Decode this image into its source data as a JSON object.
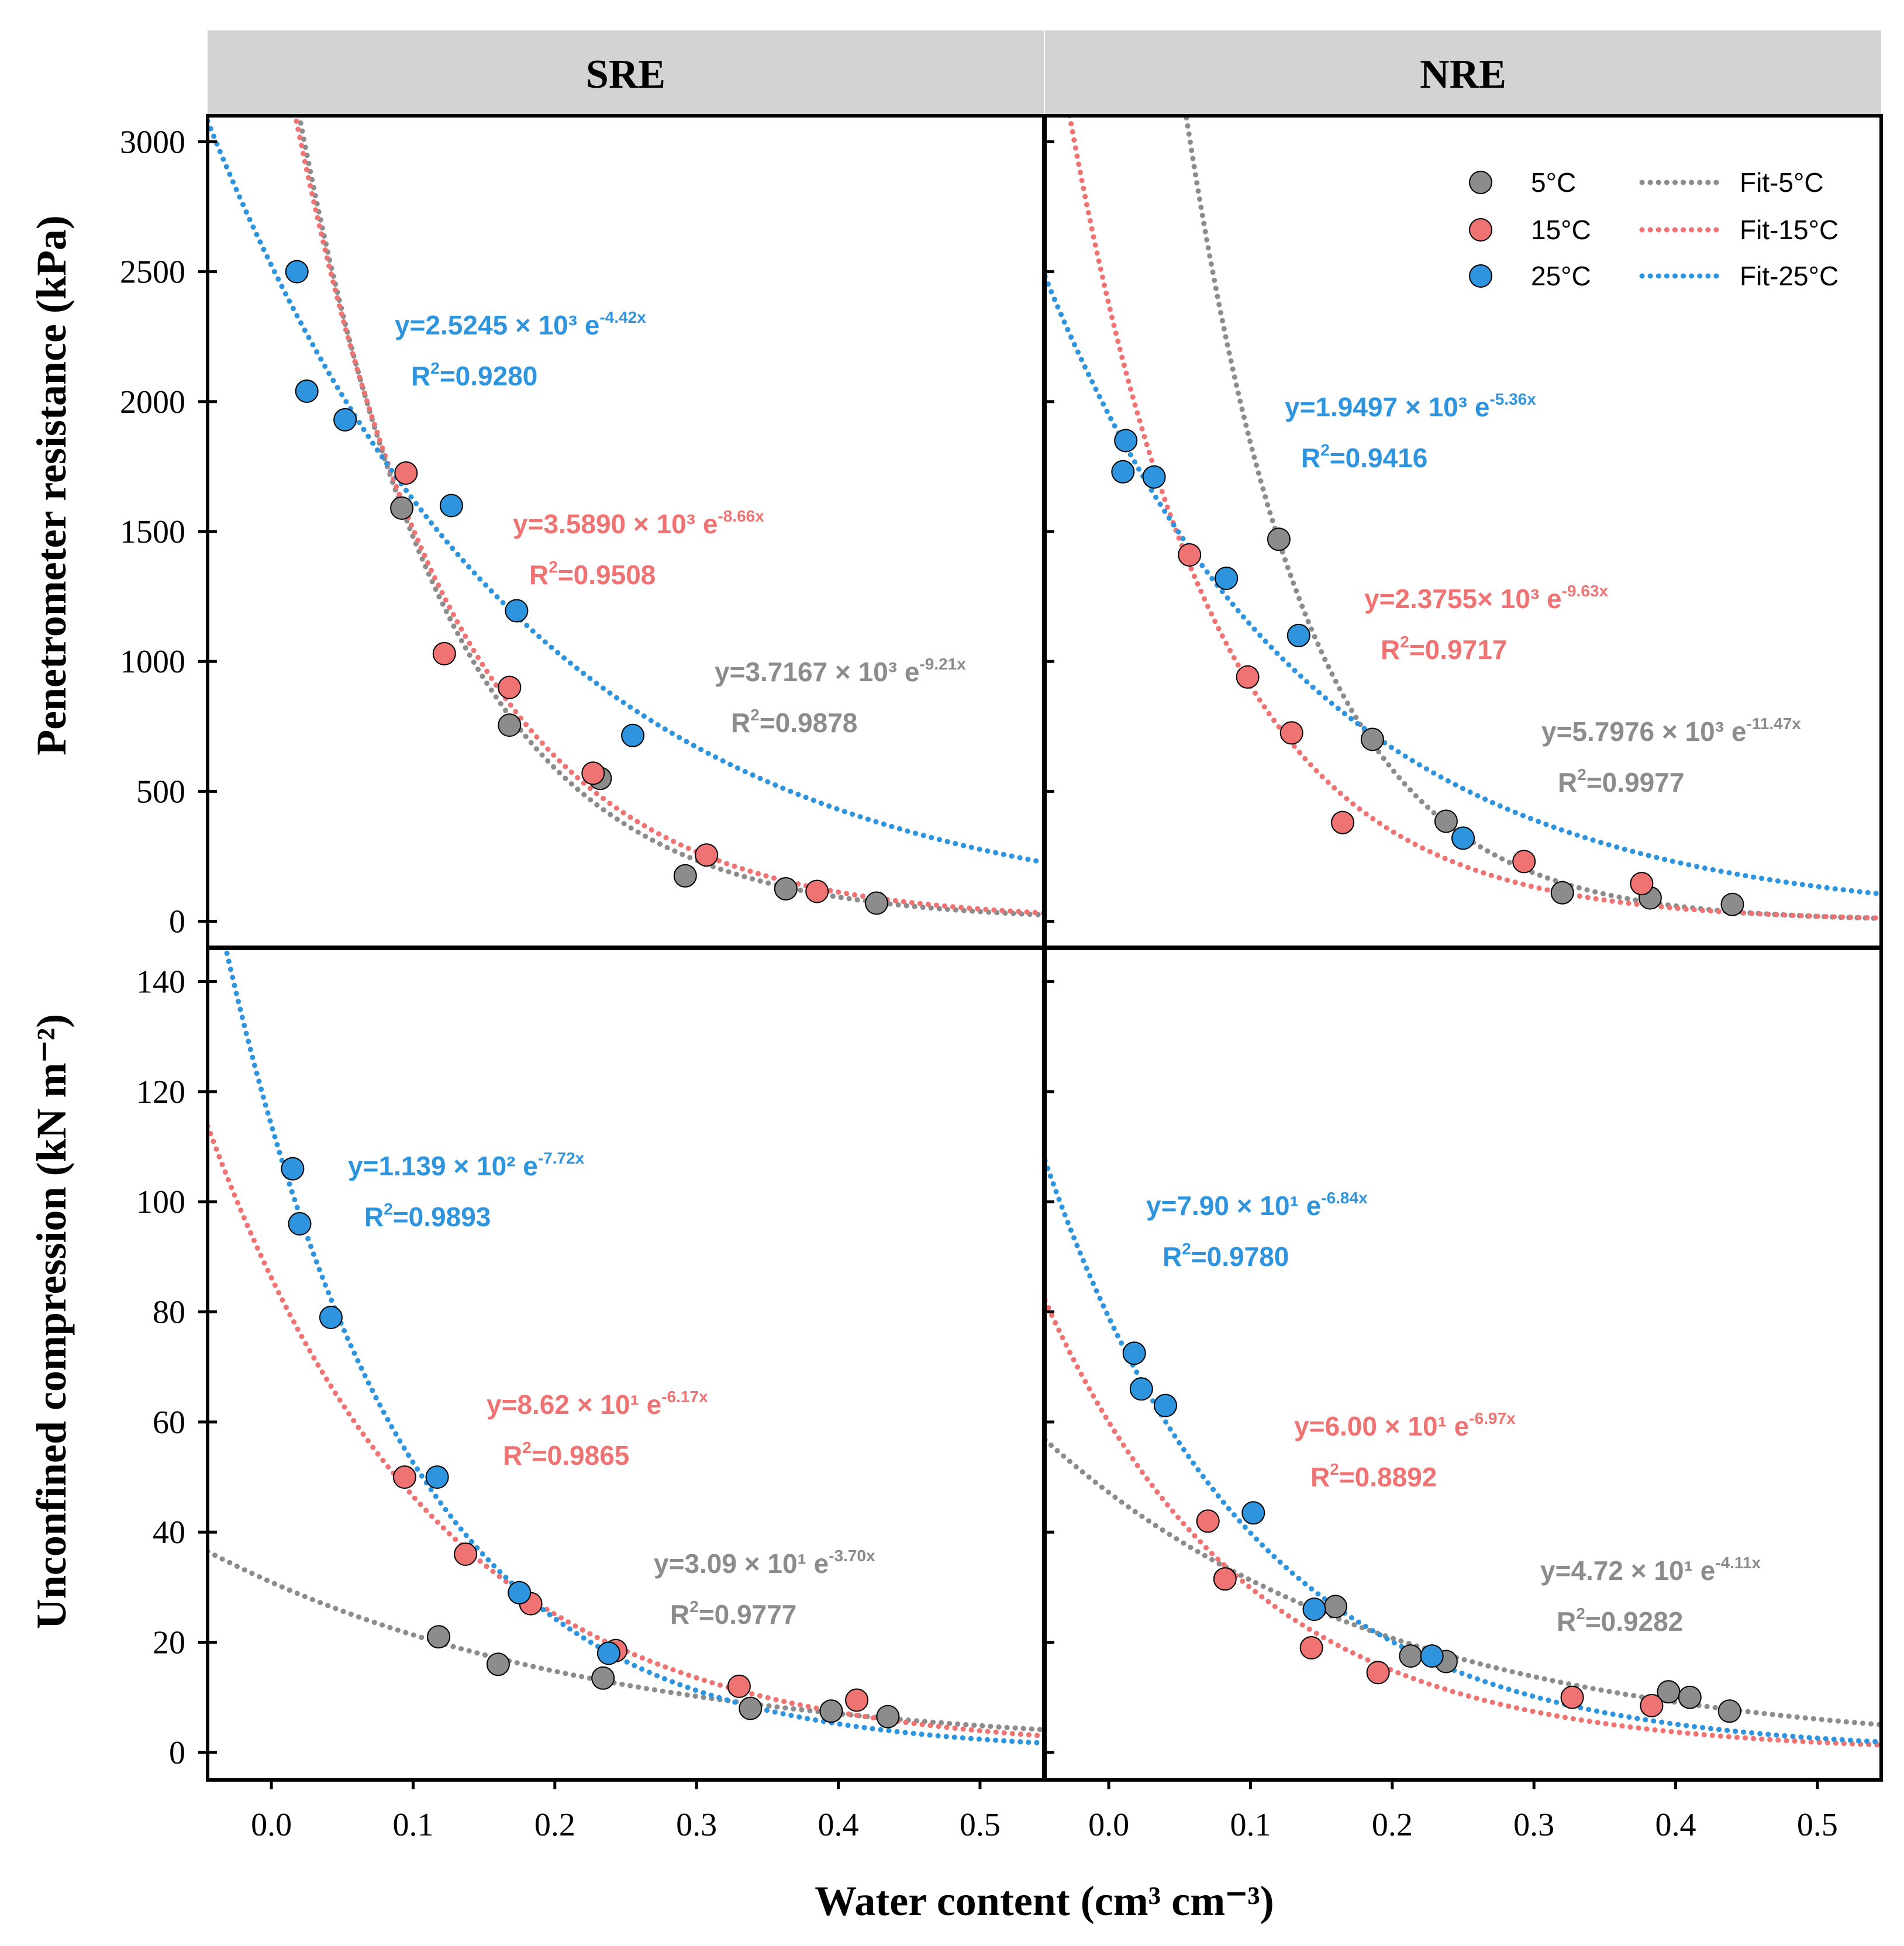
{
  "chart_data": {
    "type": "scatter",
    "xlabel": "Water content (cm³ cm⁻³)",
    "x_ticks": [
      "0.0",
      "0.1",
      "0.2",
      "0.3",
      "0.4",
      "0.5"
    ],
    "xlim": [
      -0.045,
      0.545
    ],
    "colors": {
      "5°C": "#8c8c8c",
      "15°C": "#f07373",
      "25°C": "#2f94de"
    },
    "legend": {
      "position": "top-right",
      "points": [
        "5°C",
        "15°C",
        "25°C"
      ],
      "fits": [
        "Fit-5°C",
        "Fit-15°C",
        "Fit-25°C"
      ]
    },
    "strips": [
      "SRE",
      "NRE"
    ],
    "rows": [
      {
        "ylabel": "Penetrometer resistance (kPa)",
        "ylim": [
          -100,
          3100
        ],
        "y_ticks": [
          0,
          500,
          1000,
          1500,
          2000,
          2500,
          3000
        ],
        "panels": [
          {
            "site": "SRE",
            "series": [
              {
                "name": "5°C",
                "a": 3716.7,
                "b": -9.21,
                "eq": "y=3.7167 × 10³ e",
                "exp": "-9.21x",
                "r2": "=0.9878",
                "points": [
                  [
                    0.092,
                    1590
                  ],
                  [
                    0.168,
                    755
                  ],
                  [
                    0.232,
                    550
                  ],
                  [
                    0.292,
                    175
                  ],
                  [
                    0.363,
                    125
                  ],
                  [
                    0.427,
                    70
                  ]
                ]
              },
              {
                "name": "15°C",
                "a": 3589.0,
                "b": -8.66,
                "eq": "y=3.5890 × 10³ e",
                "exp": "-8.66x",
                "r2": "=0.9508",
                "points": [
                  [
                    0.095,
                    1725
                  ],
                  [
                    0.122,
                    1030
                  ],
                  [
                    0.168,
                    900
                  ],
                  [
                    0.227,
                    570
                  ],
                  [
                    0.307,
                    255
                  ],
                  [
                    0.385,
                    115
                  ]
                ]
              },
              {
                "name": "25°C",
                "a": 2524.5,
                "b": -4.42,
                "eq": "y=2.5245 × 10³ e",
                "exp": "-4.42x",
                "r2": "=0.9280",
                "points": [
                  [
                    0.018,
                    2500
                  ],
                  [
                    0.025,
                    2040
                  ],
                  [
                    0.052,
                    1930
                  ],
                  [
                    0.127,
                    1600
                  ],
                  [
                    0.173,
                    1195
                  ],
                  [
                    0.255,
                    715
                  ]
                ]
              }
            ]
          },
          {
            "site": "NRE",
            "series": [
              {
                "name": "5°C",
                "a": 5797.6,
                "b": -11.47,
                "eq": "y=5.7976 × 10³ e",
                "exp": "-11.47x",
                "r2": "=0.9977",
                "points": [
                  [
                    0.12,
                    1470
                  ],
                  [
                    0.186,
                    700
                  ],
                  [
                    0.238,
                    385
                  ],
                  [
                    0.32,
                    110
                  ],
                  [
                    0.382,
                    90
                  ],
                  [
                    0.44,
                    65
                  ]
                ]
              },
              {
                "name": "15°C",
                "a": 2375.5,
                "b": -9.63,
                "eq": "y=2.3755× 10³ e",
                "exp": "-9.63x",
                "r2": "=0.9717",
                "points": [
                  [
                    0.057,
                    1410
                  ],
                  [
                    0.098,
                    940
                  ],
                  [
                    0.129,
                    725
                  ],
                  [
                    0.165,
                    380
                  ],
                  [
                    0.293,
                    230
                  ],
                  [
                    0.376,
                    145
                  ]
                ]
              },
              {
                "name": "25°C",
                "a": 1949.7,
                "b": -5.36,
                "eq": "y=1.9497 × 10³ e",
                "exp": "-5.36x",
                "r2": "=0.9416",
                "points": [
                  [
                    0.012,
                    1850
                  ],
                  [
                    0.01,
                    1730
                  ],
                  [
                    0.032,
                    1710
                  ],
                  [
                    0.083,
                    1320
                  ],
                  [
                    0.134,
                    1100
                  ],
                  [
                    0.25,
                    320
                  ]
                ]
              }
            ]
          }
        ]
      },
      {
        "ylabel": "Unconfined compression (kN m⁻²)",
        "ylim": [
          -5,
          146
        ],
        "y_ticks": [
          0,
          20,
          40,
          60,
          80,
          100,
          120,
          140
        ],
        "panels": [
          {
            "site": "SRE",
            "series": [
              {
                "name": "5°C",
                "a": 30.9,
                "b": -3.7,
                "eq": "y=3.09 × 10¹ e",
                "exp": "-3.70x",
                "r2": "=0.9777",
                "points": [
                  [
                    0.118,
                    21
                  ],
                  [
                    0.16,
                    16
                  ],
                  [
                    0.234,
                    13.5
                  ],
                  [
                    0.338,
                    8
                  ],
                  [
                    0.395,
                    7.5
                  ],
                  [
                    0.435,
                    6.5
                  ]
                ]
              },
              {
                "name": "15°C",
                "a": 86.2,
                "b": -6.17,
                "eq": "y=8.62 × 10¹ e",
                "exp": "-6.17x",
                "r2": "=0.9865",
                "points": [
                  [
                    0.094,
                    50
                  ],
                  [
                    0.137,
                    36
                  ],
                  [
                    0.183,
                    27
                  ],
                  [
                    0.243,
                    18.5
                  ],
                  [
                    0.33,
                    12
                  ],
                  [
                    0.413,
                    9.5
                  ]
                ]
              },
              {
                "name": "25°C",
                "a": 113.9,
                "b": -7.72,
                "eq": "y=1.139 × 10² e",
                "exp": "-7.72x",
                "r2": "=0.9893",
                "points": [
                  [
                    0.015,
                    106
                  ],
                  [
                    0.02,
                    96
                  ],
                  [
                    0.042,
                    79
                  ],
                  [
                    0.117,
                    50
                  ],
                  [
                    0.175,
                    29
                  ],
                  [
                    0.238,
                    18
                  ]
                ]
              }
            ]
          },
          {
            "site": "NRE",
            "series": [
              {
                "name": "5°C",
                "a": 47.2,
                "b": -4.11,
                "eq": "y=4.72 × 10¹ e",
                "exp": "-4.11x",
                "r2": "=0.9282",
                "points": [
                  [
                    0.16,
                    26.5
                  ],
                  [
                    0.213,
                    17.5
                  ],
                  [
                    0.238,
                    16.5
                  ],
                  [
                    0.395,
                    11
                  ],
                  [
                    0.41,
                    10
                  ],
                  [
                    0.438,
                    7.5
                  ]
                ]
              },
              {
                "name": "15°C",
                "a": 60.0,
                "b": -6.97,
                "eq": "y=6.00 × 10¹ e",
                "exp": "-6.97x",
                "r2": "=0.8892",
                "points": [
                  [
                    0.07,
                    42
                  ],
                  [
                    0.082,
                    31.5
                  ],
                  [
                    0.143,
                    19
                  ],
                  [
                    0.19,
                    14.5
                  ],
                  [
                    0.327,
                    10
                  ],
                  [
                    0.383,
                    8.5
                  ]
                ]
              },
              {
                "name": "25°C",
                "a": 79.0,
                "b": -6.84,
                "eq": "y=7.90 × 10¹ e",
                "exp": "-6.84x",
                "r2": "=0.9780",
                "points": [
                  [
                    0.018,
                    72.5
                  ],
                  [
                    0.023,
                    66
                  ],
                  [
                    0.04,
                    63
                  ],
                  [
                    0.102,
                    43.5
                  ],
                  [
                    0.145,
                    26
                  ],
                  [
                    0.228,
                    17.5
                  ]
                ]
              }
            ]
          }
        ]
      }
    ]
  }
}
